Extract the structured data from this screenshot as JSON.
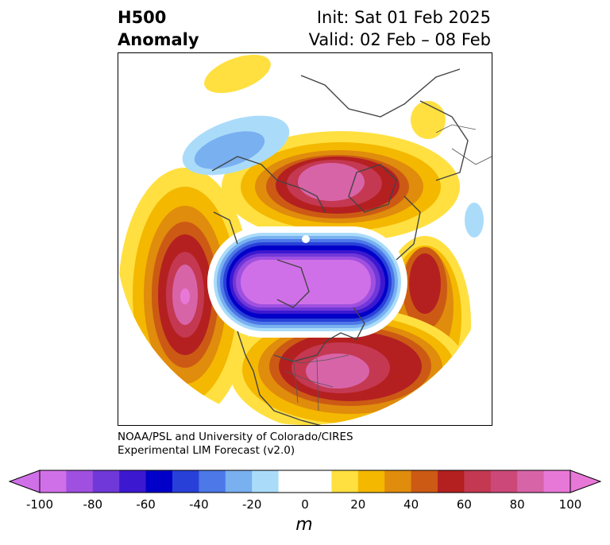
{
  "title": {
    "left_line1": "H500",
    "left_line2": "Anomaly",
    "right_line1": "Init: Sat 01 Feb 2025",
    "right_line2": "Valid: 02 Feb – 08 Feb"
  },
  "credit": {
    "line1": "NOAA/PSL and University of Colorado/CIRES",
    "line2": "Experimental LIM Forecast (v2.0)"
  },
  "colorbar": {
    "unit": "m",
    "ticks": [
      "-100",
      "-80",
      "-60",
      "-40",
      "-20",
      "0",
      "20",
      "40",
      "60",
      "80",
      "100"
    ],
    "colors": [
      "#d070e8",
      "#a050e0",
      "#7038d8",
      "#3c18d0",
      "#0000c8",
      "#2840d8",
      "#4c78e8",
      "#78b0f0",
      "#aadcfa",
      "#ffffff",
      "#ffffff",
      "#ffe040",
      "#f4b800",
      "#e08c0c",
      "#cc5a14",
      "#b42020",
      "#c43852",
      "#cc4878",
      "#d864a8",
      "#e878d8"
    ],
    "under_color": "#d070e8",
    "over_color": "#e878d8"
  },
  "map": {
    "legend": "filled contours of 500 hPa height anomaly",
    "levels": [
      -100,
      -90,
      -80,
      -70,
      -60,
      -50,
      -40,
      -30,
      -20,
      -10,
      10,
      20,
      30,
      40,
      50,
      60,
      70,
      80,
      90,
      100
    ]
  }
}
